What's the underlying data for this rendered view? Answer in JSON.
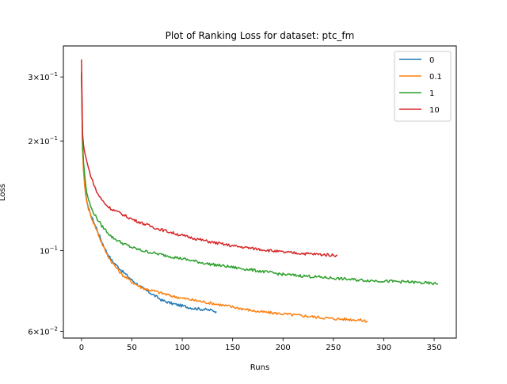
{
  "chart_data": {
    "type": "line",
    "title": "Plot of Ranking Loss for dataset: ptc_fm",
    "xlabel": "Runs",
    "ylabel": "Loss",
    "yscale": "log",
    "xlim": [
      -18,
      372
    ],
    "ylim": [
      0.0575,
      0.365
    ],
    "xticks": [
      0,
      50,
      100,
      150,
      200,
      250,
      300,
      350
    ],
    "xtick_labels": [
      "0",
      "50",
      "100",
      "150",
      "200",
      "250",
      "300",
      "350"
    ],
    "yticks": [
      0.3,
      0.2,
      0.1,
      0.06
    ],
    "ytick_labels": [
      {
        "base": "3×10",
        "exp": "−1"
      },
      {
        "base": "2×10",
        "exp": "−1"
      },
      {
        "base": "10",
        "exp": "−1"
      },
      {
        "base": "6×10",
        "exp": "−2"
      }
    ],
    "grid": false,
    "legend_position": "top-right",
    "series": [
      {
        "name": "0",
        "color": "#1f77b4",
        "x": [
          0,
          1,
          2,
          3,
          4,
          5,
          7,
          10,
          15,
          20,
          25,
          30,
          40,
          50,
          60,
          70,
          80,
          90,
          100,
          110,
          120,
          130,
          134
        ],
        "y": [
          0.305,
          0.2,
          0.17,
          0.155,
          0.145,
          0.138,
          0.13,
          0.124,
          0.115,
          0.106,
          0.099,
          0.094,
          0.088,
          0.083,
          0.079,
          0.076,
          0.073,
          0.0715,
          0.0705,
          0.0695,
          0.069,
          0.0685,
          0.068
        ]
      },
      {
        "name": "0.1",
        "color": "#ff7f0e",
        "x": [
          0,
          1,
          2,
          3,
          4,
          5,
          7,
          10,
          15,
          20,
          25,
          30,
          40,
          50,
          60,
          75,
          90,
          100,
          125,
          150,
          175,
          200,
          225,
          250,
          275,
          284
        ],
        "y": [
          0.3,
          0.19,
          0.165,
          0.152,
          0.143,
          0.137,
          0.13,
          0.123,
          0.114,
          0.105,
          0.098,
          0.093,
          0.086,
          0.082,
          0.079,
          0.077,
          0.075,
          0.074,
          0.072,
          0.07,
          0.068,
          0.067,
          0.066,
          0.065,
          0.0645,
          0.064
        ]
      },
      {
        "name": "1",
        "color": "#2ca02c",
        "x": [
          0,
          1,
          2,
          3,
          4,
          5,
          7,
          10,
          15,
          20,
          25,
          30,
          40,
          50,
          60,
          75,
          100,
          125,
          150,
          175,
          200,
          225,
          250,
          275,
          300,
          325,
          354
        ],
        "y": [
          0.31,
          0.2,
          0.175,
          0.163,
          0.153,
          0.145,
          0.138,
          0.13,
          0.123,
          0.117,
          0.113,
          0.109,
          0.105,
          0.102,
          0.1,
          0.098,
          0.095,
          0.092,
          0.09,
          0.088,
          0.086,
          0.085,
          0.084,
          0.083,
          0.0825,
          0.082,
          0.081
        ]
      },
      {
        "name": "10",
        "color": "#d62728",
        "x": [
          0,
          1,
          2,
          3,
          4,
          5,
          7,
          10,
          15,
          20,
          25,
          30,
          40,
          50,
          60,
          75,
          100,
          125,
          150,
          175,
          200,
          225,
          254
        ],
        "y": [
          0.335,
          0.21,
          0.195,
          0.187,
          0.182,
          0.177,
          0.168,
          0.158,
          0.145,
          0.138,
          0.133,
          0.13,
          0.126,
          0.122,
          0.119,
          0.115,
          0.11,
          0.106,
          0.103,
          0.101,
          0.099,
          0.098,
          0.097
        ]
      }
    ]
  }
}
